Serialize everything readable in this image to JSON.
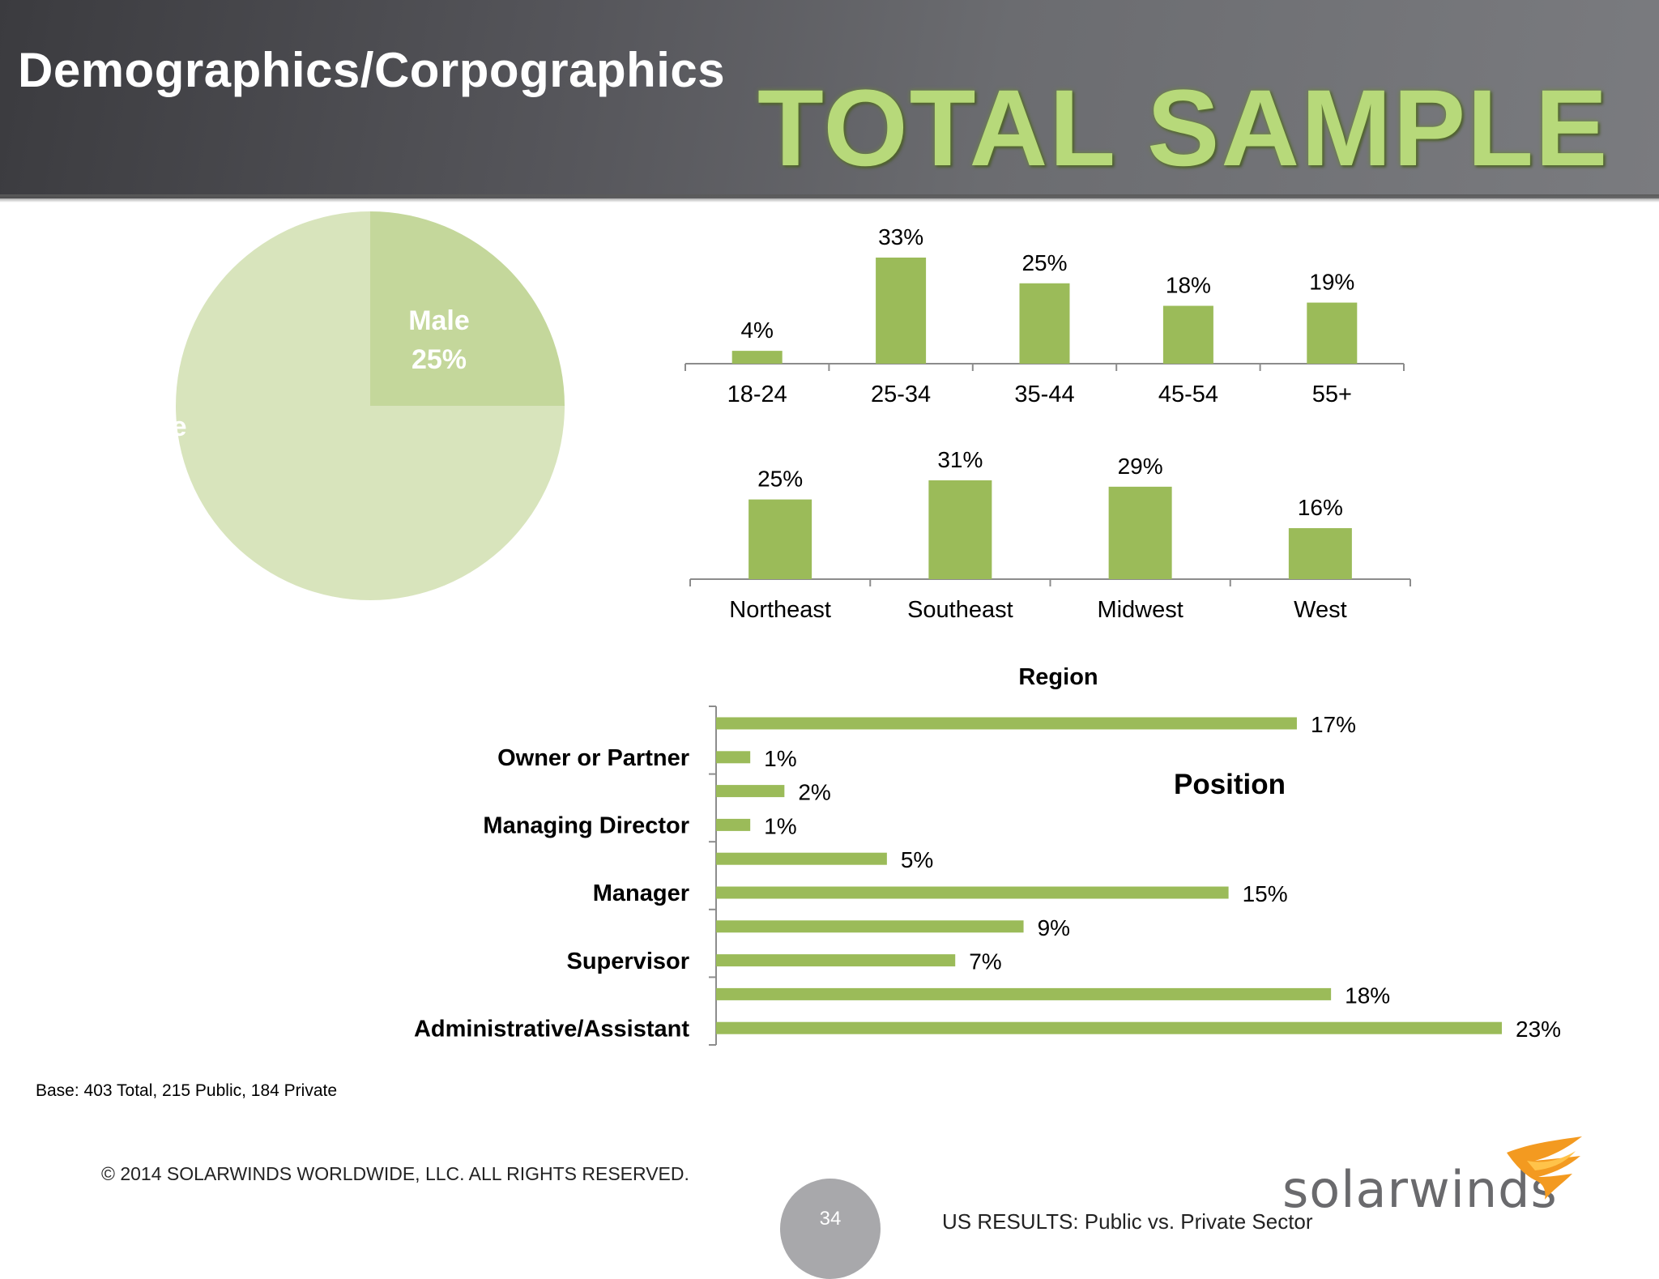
{
  "page": {
    "title": "Demographics/Corpographics",
    "banner": "TOTAL SAMPLE",
    "base_note": "Base:  403  Total, 215 Public, 184 Private",
    "copyright": "© 2014 SOLARWINDS WORLDWIDE, LLC.  ALL RIGHTS RESERVED.",
    "page_number": "34",
    "footer_right": "US RESULTS:  Public vs. Private Sector",
    "logo": "solarwinds",
    "logo_icon": "flame-swoosh-icon"
  },
  "colors": {
    "header_dark": "#3b3b3f",
    "banner_green": "#b7d97a",
    "bar_green": "#9bbb59",
    "pie_male": "#c4d79b",
    "pie_female": "#d8e4bc",
    "logo_orange": "#f39a20"
  },
  "chart_data": [
    {
      "type": "pie",
      "title": "",
      "slices": [
        {
          "label": "Male",
          "value": 25,
          "display": "25%"
        },
        {
          "label": "Female",
          "value": 75,
          "display": "75%"
        }
      ]
    },
    {
      "type": "bar",
      "title": "",
      "categories": [
        "18-24",
        "25-34",
        "35-44",
        "45-54",
        "55+"
      ],
      "values": [
        4,
        33,
        25,
        18,
        19
      ],
      "labels": [
        "4%",
        "33%",
        "25%",
        "18%",
        "19%"
      ],
      "ylim": [
        0,
        33
      ]
    },
    {
      "type": "bar",
      "title": "Region",
      "categories": [
        "Northeast",
        "Southeast",
        "Midwest",
        "West"
      ],
      "values": [
        25,
        31,
        29,
        16
      ],
      "labels": [
        "25%",
        "31%",
        "29%",
        "16%"
      ],
      "ylim": [
        0,
        31
      ]
    },
    {
      "type": "bar",
      "orientation": "horizontal",
      "title": "Position",
      "category_labels": [
        "Owner or Partner",
        "Managing Director",
        "Manager",
        "Supervisor",
        "Administrative/Assistant"
      ],
      "values": [
        17,
        1,
        2,
        1,
        5,
        15,
        9,
        7,
        18,
        23
      ],
      "labels": [
        "17%",
        "1%",
        "2%",
        "1%",
        "5%",
        "15%",
        "9%",
        "7%",
        "18%",
        "23%"
      ],
      "xlim": [
        0,
        23
      ]
    }
  ]
}
